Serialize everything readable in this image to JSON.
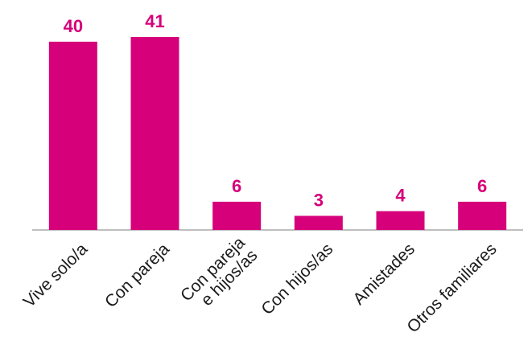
{
  "chart_data": {
    "type": "bar",
    "title": "",
    "xlabel": "",
    "ylabel": "",
    "categories": [
      [
        "Vive solo/a"
      ],
      [
        "Con pareja"
      ],
      [
        "Con pareja",
        "e hijos/as"
      ],
      [
        "Con hijos/as"
      ],
      [
        "Amistades"
      ],
      [
        "Otros familiares"
      ]
    ],
    "values": [
      40,
      41,
      6,
      3,
      4,
      6
    ],
    "ylim": [
      0,
      41
    ],
    "grid": false,
    "legend": "none",
    "colors": {
      "bar": "#d6007a",
      "value_label": "#d6007a",
      "axis": "#7f7f7f"
    }
  }
}
